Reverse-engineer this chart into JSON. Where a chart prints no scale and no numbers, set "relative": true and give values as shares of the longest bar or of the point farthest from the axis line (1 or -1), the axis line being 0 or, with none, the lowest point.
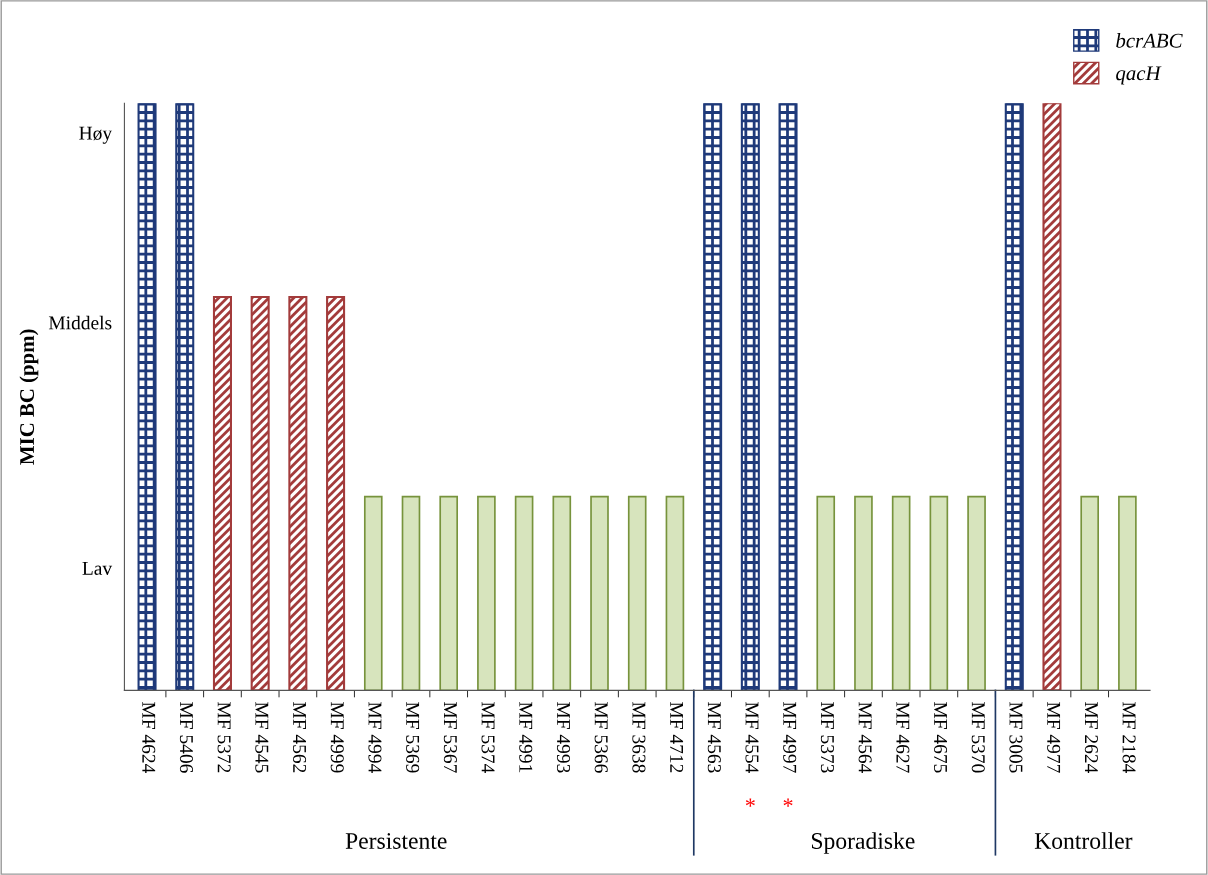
{
  "chart_data": {
    "type": "bar",
    "ylabel": "MIC BC (ppm)",
    "relative": true,
    "categories": [
      "MF 4624",
      "MF 5406",
      "MF 5372",
      "MF 4545",
      "MF 4562",
      "MF 4999",
      "MF 4994",
      "MF 5369",
      "MF 5367",
      "MF 5374",
      "MF 4991",
      "MF 4993",
      "MF 5366",
      "MF 3638",
      "MF 4712",
      "MF 4563",
      "MF 4554",
      "MF 4997",
      "MF 5373",
      "MF 4564",
      "MF 4627",
      "MF 4675",
      "MF 5370",
      "MF 3005",
      "MF 4977",
      "MF 2624",
      "MF 2184"
    ],
    "series": [
      {
        "name": "bcrABC",
        "color": "#1f3a7a",
        "values": [
          1,
          1,
          null,
          null,
          null,
          null,
          null,
          null,
          null,
          null,
          null,
          null,
          null,
          null,
          null,
          1,
          1,
          1,
          null,
          null,
          null,
          null,
          null,
          1,
          null,
          null,
          null
        ]
      },
      {
        "name": "qacH",
        "color": "#a33b3b",
        "values": [
          null,
          null,
          0.67,
          0.67,
          0.67,
          0.67,
          null,
          null,
          null,
          null,
          null,
          null,
          null,
          null,
          null,
          null,
          null,
          null,
          null,
          null,
          null,
          null,
          null,
          null,
          1,
          null,
          null
        ]
      },
      {
        "color": "#d7e4bd",
        "values": [
          null,
          null,
          null,
          null,
          null,
          null,
          0.33,
          0.33,
          0.33,
          0.33,
          0.33,
          0.33,
          0.33,
          0.33,
          0.33,
          null,
          null,
          null,
          0.33,
          0.33,
          0.33,
          0.33,
          0.33,
          null,
          null,
          0.33,
          0.33
        ]
      }
    ],
    "legend": "top right",
    "annotations": [
      "Høy",
      "Middels",
      "Lav",
      "Persistente",
      "Sporadiske",
      "Kontroller",
      "*",
      "*"
    ]
  }
}
